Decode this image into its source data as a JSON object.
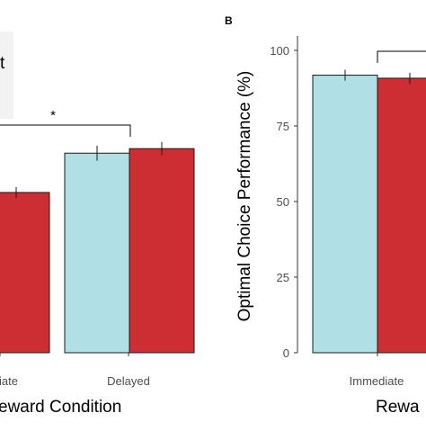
{
  "colors": {
    "immediate_fill": "#b0dfe5",
    "delayed_fill": "#cc2e33",
    "bar_stroke": "#1a1a1a",
    "axis": "#333333",
    "legend_bg": "#f2f2f2"
  },
  "chart_data": [
    {
      "panel": "A",
      "type": "bar",
      "xlabel": "Reward Condition",
      "ylabel": "",
      "ylim": [
        0,
        100
      ],
      "categories": [
        "Immediate",
        "Delayed"
      ],
      "series": [
        {
          "color": "#b0dfe5",
          "values": [
            null,
            66
          ],
          "errors": [
            null,
            2.5
          ]
        },
        {
          "color": "#cc2e33",
          "values": [
            53,
            67.5
          ],
          "errors": [
            1.8,
            2.2
          ]
        }
      ],
      "significance": {
        "label": "*",
        "between": [
          "Immediate",
          "Delayed"
        ],
        "y": 74
      },
      "legend": {
        "title_fragment": "t",
        "placement": "top-left"
      }
    },
    {
      "panel": "B",
      "type": "bar",
      "xlabel": "Rewa",
      "ylabel": "Optimal Choice Performance (%)",
      "ylim": [
        0,
        100
      ],
      "yticks": [
        0,
        25,
        50,
        75,
        100
      ],
      "categories": [
        "Immediate"
      ],
      "series": [
        {
          "color": "#b0dfe5",
          "values": [
            91.8
          ],
          "errors": [
            1.8
          ]
        },
        {
          "color": "#cc2e33",
          "values": [
            90.8
          ],
          "errors": [
            1.8
          ]
        }
      ],
      "bracket_y": 100
    }
  ],
  "labels": {
    "panel_b_tag": "B",
    "legend_fragment": "t",
    "sig_star": "*",
    "a_xtick_left": "iate",
    "a_xtick_right": "Delayed",
    "a_xlabel": "eward Condition",
    "b_xtick": "Immediate",
    "b_xlabel": "Rewa",
    "b_ylabel": "Optimal Choice Performance (%)"
  }
}
